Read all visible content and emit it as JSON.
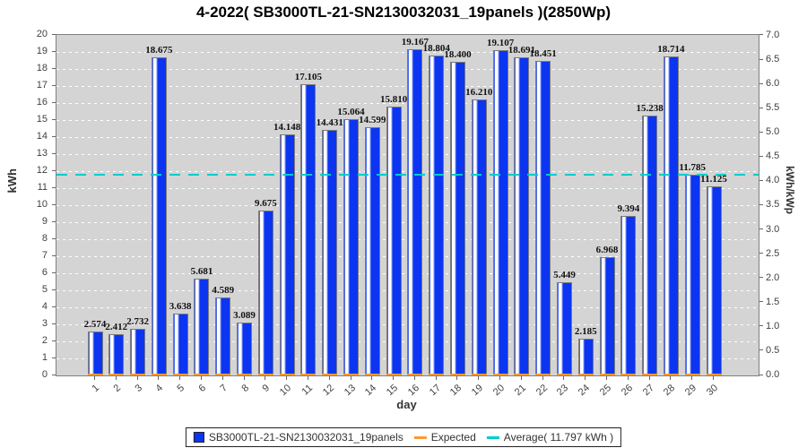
{
  "title": "4-2022( SB3000TL-21-SN2130032031_19panels )(2850Wp)",
  "chart_data": {
    "type": "bar",
    "categories": [
      1,
      2,
      3,
      4,
      5,
      6,
      7,
      8,
      9,
      10,
      11,
      12,
      13,
      14,
      15,
      16,
      17,
      18,
      19,
      20,
      21,
      22,
      23,
      24,
      25,
      26,
      27,
      28,
      29,
      30
    ],
    "series": [
      {
        "name": "SB3000TL-21-SN2130032031_19panels",
        "values": [
          2.574,
          2.412,
          2.732,
          18.675,
          3.638,
          5.681,
          4.589,
          3.089,
          9.675,
          14.148,
          17.105,
          14.431,
          15.064,
          14.599,
          15.81,
          19.167,
          18.804,
          18.4,
          16.21,
          19.107,
          18.691,
          18.451,
          5.449,
          2.185,
          6.968,
          9.394,
          15.238,
          18.714,
          11.785,
          11.125
        ]
      }
    ],
    "xlabel": "day",
    "ylabel_left": "kWh",
    "ylabel_right": "kWh/kWp",
    "ylim_left": [
      0,
      20
    ],
    "ylim_right": [
      0.0,
      7.0
    ],
    "left_tick_step": 1,
    "right_tick_step": 0.5,
    "right_axis_kwh_per_unit": 2.85,
    "average": 11.797,
    "grid": true,
    "legend_position": "bottom",
    "value_label_decimals": 3,
    "colors": {
      "bar": "#0b35f0",
      "expected": "#ff9933",
      "average": "#00cccc",
      "plot_bg": "#d4d4d4",
      "grid": "#ffffff",
      "frame": "#808080"
    }
  },
  "legend": {
    "items": [
      {
        "label": "SB3000TL-21-SN2130032031_19panels",
        "color": "#0b35f0",
        "type": "square"
      },
      {
        "label": "Expected",
        "color": "#ff9933",
        "type": "dash"
      },
      {
        "label": "Average( 11.797 kWh )",
        "color": "#00cccc",
        "type": "dash"
      }
    ]
  }
}
